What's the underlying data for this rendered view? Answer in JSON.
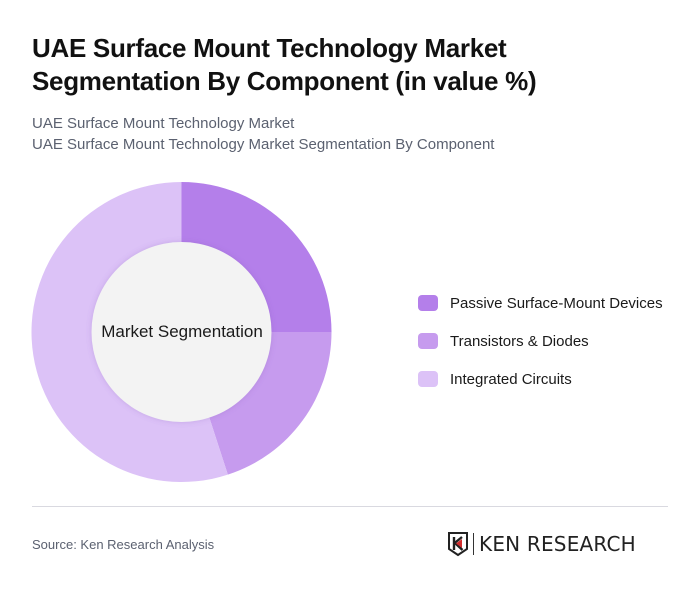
{
  "header": {
    "title": "UAE Surface Mount Technology Market Segmentation By Component (in value %)",
    "subtitle_line1": "UAE Surface Mount Technology Market",
    "subtitle_line2": "UAE Surface Mount Technology Market Segmentation By Component"
  },
  "chart": {
    "center_label": "Market Segmentation",
    "legend": [
      {
        "label": "Passive Surface-Mount Devices",
        "color": "#B47FEA"
      },
      {
        "label": "Transistors & Diodes",
        "color": "#C69BEE"
      },
      {
        "label": "Integrated Circuits",
        "color": "#DCC2F7"
      }
    ]
  },
  "footer": {
    "source": "Source: Ken Research Analysis",
    "logo_text": "KEN RESEARCH",
    "logo_accent_color": "#d32f2f"
  },
  "chart_data": {
    "type": "pie",
    "variant": "donut",
    "title": "UAE Surface Mount Technology Market Segmentation By Component (in value %)",
    "subtitle": "UAE Surface Mount Technology Market / UAE Surface Mount Technology Market Segmentation By Component",
    "center_label": "Market Segmentation",
    "categories": [
      "Passive Surface-Mount Devices",
      "Transistors & Diodes",
      "Integrated Circuits"
    ],
    "values": [
      25,
      20,
      55
    ],
    "colors": [
      "#B47FEA",
      "#C69BEE",
      "#DCC2F7"
    ],
    "unit": "%",
    "legend_position": "right",
    "data_labels": false,
    "start_angle": "12 o'clock, clockwise"
  }
}
